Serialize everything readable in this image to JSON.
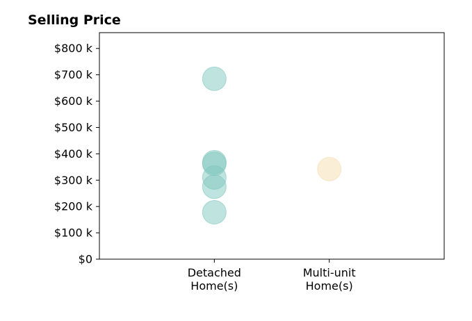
{
  "chart_data": {
    "type": "scatter",
    "title": "Selling Price",
    "xlabel": "",
    "ylabel": "",
    "categories": [
      {
        "line1": "Detached",
        "line2": "Home(s)"
      },
      {
        "line1": "Multi-unit",
        "line2": "Home(s)"
      }
    ],
    "xlim": [
      0,
      3
    ],
    "ylim": [
      0,
      860
    ],
    "y_ticks": [
      {
        "value": 0,
        "label": "$0"
      },
      {
        "value": 100,
        "label": "$100 k"
      },
      {
        "value": 200,
        "label": "$200 k"
      },
      {
        "value": 300,
        "label": "$300 k"
      },
      {
        "value": 400,
        "label": "$400 k"
      },
      {
        "value": 500,
        "label": "$500 k"
      },
      {
        "value": 600,
        "label": "$600 k"
      },
      {
        "value": 700,
        "label": "$700 k"
      },
      {
        "value": 800,
        "label": "$800 k"
      }
    ],
    "grid": false,
    "series": [
      {
        "category_index": 0,
        "color": "#7fc7bd",
        "opacity": 0.5,
        "values": [
          685,
          368,
          362,
          310,
          275,
          178
        ]
      },
      {
        "category_index": 1,
        "color": "#f5deb0",
        "opacity": 0.5,
        "values": [
          342
        ]
      }
    ]
  }
}
